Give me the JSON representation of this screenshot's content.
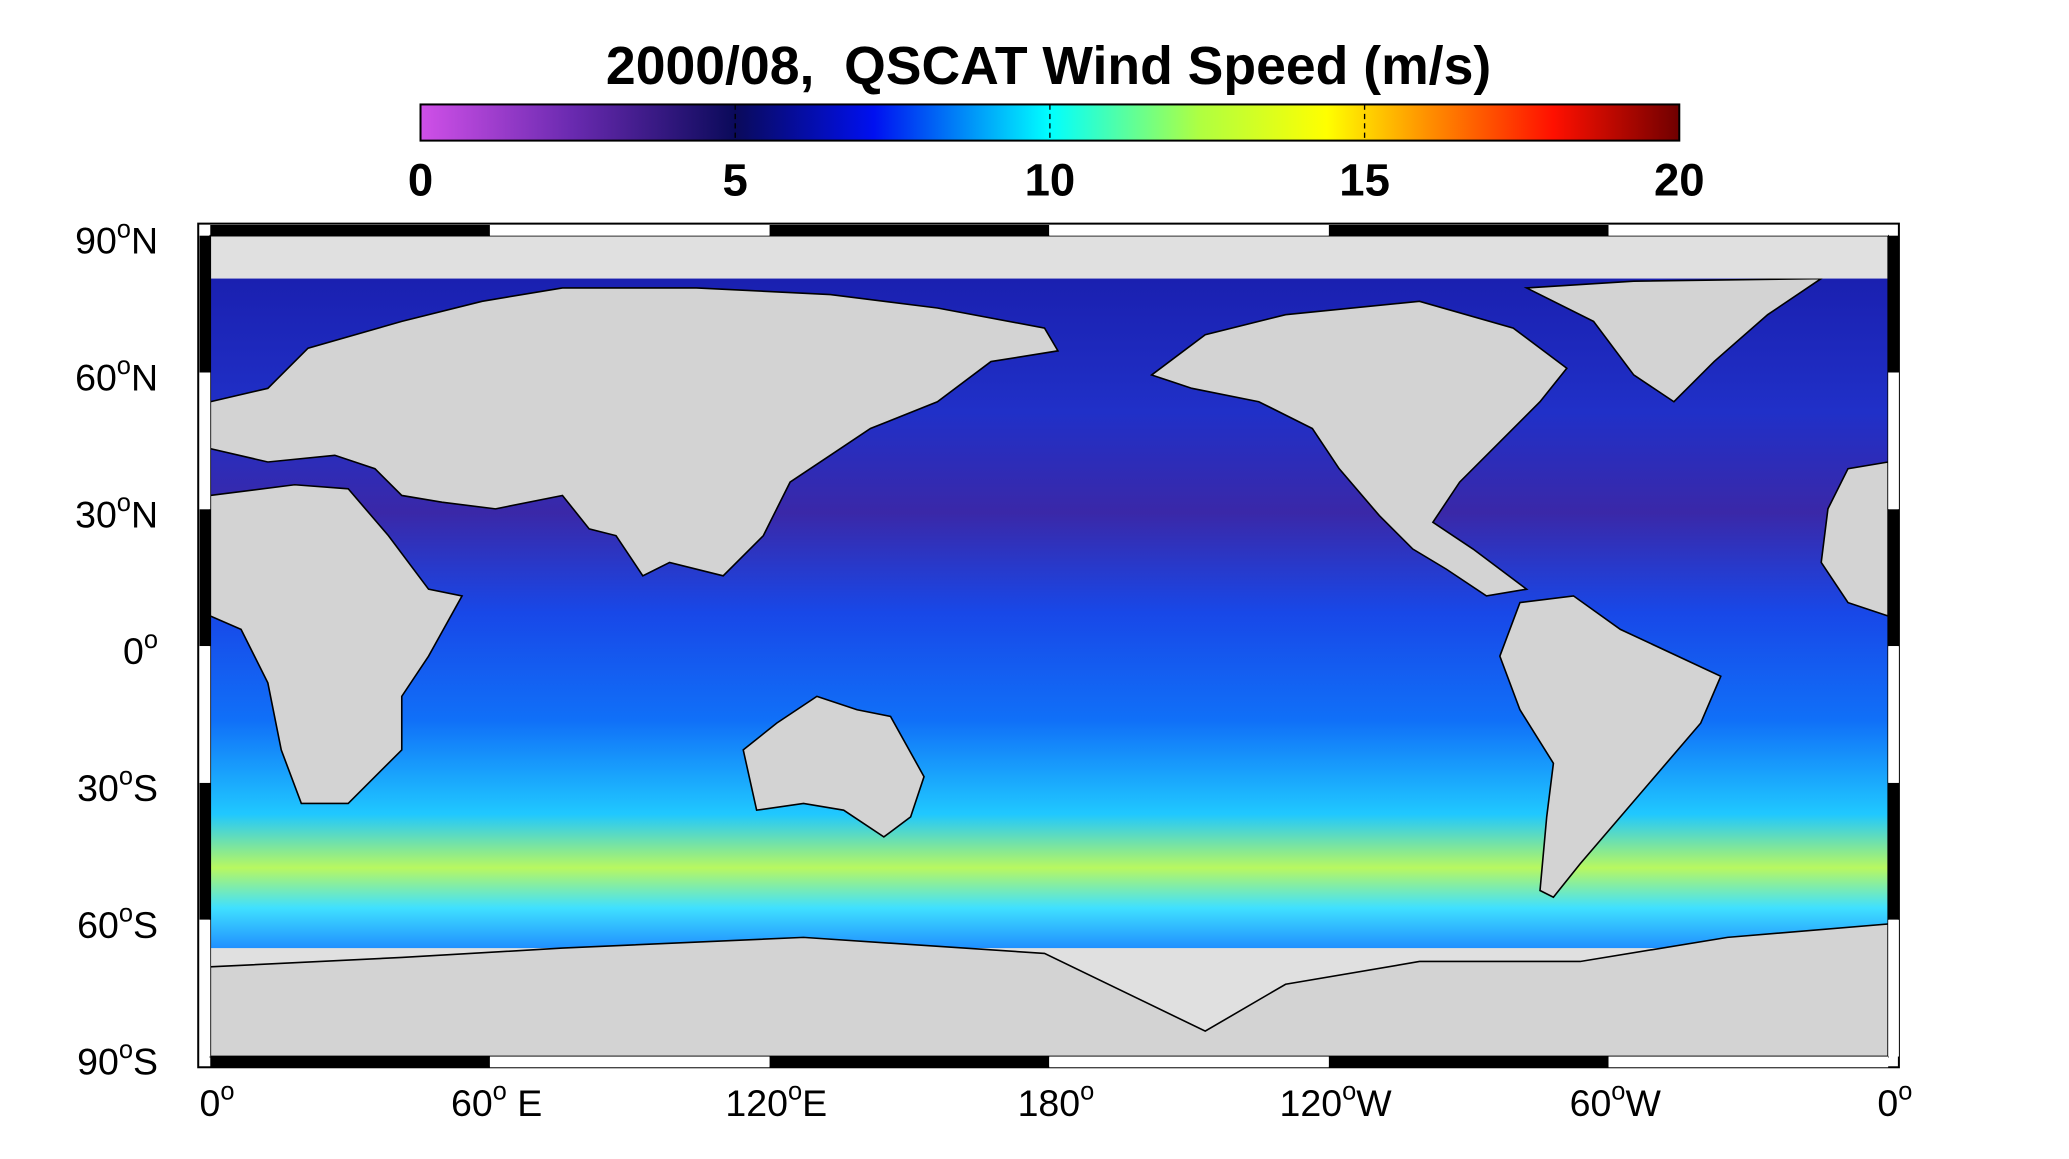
{
  "title": "2000/08,  QSCAT Wind Speed (m/s)",
  "colorbar": {
    "lim": [
      0,
      20
    ],
    "ticks": [
      0,
      5,
      10,
      15,
      20
    ]
  },
  "latitude_labels": [
    {
      "number": "90",
      "sup": "o",
      "suffix": "N"
    },
    {
      "number": "60",
      "sup": "o",
      "suffix": "N"
    },
    {
      "number": "30",
      "sup": "o",
      "suffix": "N"
    },
    {
      "number": "0",
      "sup": "o"
    },
    {
      "number": "30",
      "sup": "o",
      "suffix": "S"
    },
    {
      "number": "60",
      "sup": "o",
      "suffix": "S"
    },
    {
      "number": "90",
      "sup": "o",
      "suffix": "S"
    }
  ],
  "longitude_labels": [
    {
      "number": "0",
      "sup": "o"
    },
    {
      "number": "60",
      "sup": "o",
      "suffix": " E"
    },
    {
      "number": "120",
      "sup": "o",
      "suffix": "E"
    },
    {
      "number": "180",
      "sup": "o"
    },
    {
      "number": "120",
      "sup": "o",
      "suffix": "W"
    },
    {
      "number": "60",
      "sup": "o",
      "suffix": "W"
    },
    {
      "number": "0",
      "sup": "o"
    }
  ]
}
